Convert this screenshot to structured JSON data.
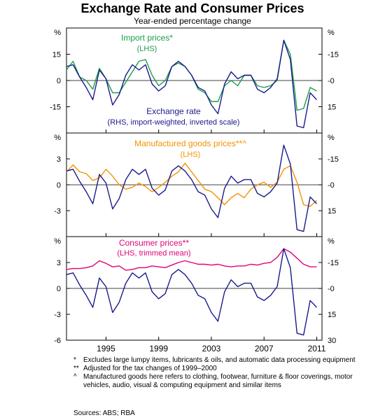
{
  "chart_data": {
    "type": "line",
    "title": "Exchange Rate and Consumer Prices",
    "subtitle": "Year-ended percentage change",
    "x_ticks": [
      "1995",
      "1999",
      "2003",
      "2007",
      "2011"
    ],
    "x_range": [
      1992.0,
      2011.4
    ],
    "panels": [
      {
        "unit_left": "%",
        "unit_right": "%",
        "left_ylim": [
          -30,
          30
        ],
        "left_ticks": [
          "15",
          "0",
          "-15"
        ],
        "left_tick_values": [
          15,
          0,
          -15
        ],
        "right_ylim": [
          30,
          -30
        ],
        "right_ticks": [
          "-15",
          "-0",
          "15"
        ],
        "right_tick_values": [
          -15,
          0,
          15
        ],
        "grid": false,
        "series": [
          {
            "name": "Import prices*",
            "label": "(LHS)",
            "axis": "left",
            "color": "#1a9e4a",
            "x": [
              1992.0,
              1992.5,
              1993.0,
              1993.5,
              1994.0,
              1994.5,
              1995.0,
              1995.5,
              1996.0,
              1996.5,
              1997.0,
              1997.5,
              1998.0,
              1998.5,
              1999.0,
              1999.5,
              2000.0,
              2000.5,
              2001.0,
              2001.5,
              2002.0,
              2002.5,
              2003.0,
              2003.5,
              2004.0,
              2004.5,
              2005.0,
              2005.5,
              2006.0,
              2006.5,
              2007.0,
              2007.5,
              2008.0,
              2008.5,
              2009.0,
              2009.5,
              2010.0,
              2010.5,
              2011.0
            ],
            "y": [
              6,
              11,
              2,
              0,
              -5,
              7,
              1,
              -7,
              -7,
              -1,
              5,
              11,
              12,
              3,
              -3,
              0,
              8,
              10,
              8,
              3,
              -5,
              -7,
              -12,
              -12,
              -3,
              0,
              -3,
              3,
              3,
              -3,
              -4,
              -3,
              0,
              23,
              15,
              -17,
              -16,
              -4,
              -6
            ]
          },
          {
            "name": "Exchange rate",
            "label": "(RHS, import-weighted, inverted scale)",
            "axis": "right",
            "color": "#1a1a8c",
            "x": [
              1992.0,
              1992.5,
              1993.0,
              1993.5,
              1994.0,
              1994.5,
              1995.0,
              1995.5,
              1996.0,
              1996.5,
              1997.0,
              1997.5,
              1998.0,
              1998.5,
              1999.0,
              1999.5,
              2000.0,
              2000.5,
              2001.0,
              2001.5,
              2002.0,
              2002.5,
              2003.0,
              2003.5,
              2004.0,
              2004.5,
              2005.0,
              2005.5,
              2006.0,
              2006.5,
              2007.0,
              2007.5,
              2008.0,
              2008.5,
              2009.0,
              2009.5,
              2010.0,
              2010.5,
              2011.0
            ],
            "y": [
              -8,
              -9,
              -2,
              4,
              11,
              -6,
              -1,
              14,
              8,
              -3,
              -9,
              -6,
              -9,
              2,
              6,
              3,
              -8,
              -11,
              -8,
              -3,
              4,
              6,
              14,
              19,
              2,
              -5,
              -1,
              -3,
              -3,
              5,
              7,
              4,
              -1,
              -23,
              -12,
              26,
              27,
              7,
              11
            ]
          }
        ]
      },
      {
        "unit_left": "%",
        "unit_right": "%",
        "left_ylim": [
          -6,
          6
        ],
        "left_ticks": [
          "3",
          "0",
          "-3"
        ],
        "left_tick_values": [
          3,
          0,
          -3
        ],
        "right_ylim": [
          30,
          -30
        ],
        "right_ticks": [
          "-15",
          "-0",
          "15"
        ],
        "right_tick_values": [
          -15,
          0,
          15
        ],
        "grid": false,
        "series": [
          {
            "name": "Manufactured goods prices**^",
            "label": "(LHS)",
            "axis": "left",
            "color": "#f39200",
            "x": [
              1992.0,
              1992.5,
              1993.0,
              1993.5,
              1994.0,
              1994.5,
              1995.0,
              1995.5,
              1996.0,
              1996.5,
              1997.0,
              1997.5,
              1998.0,
              1998.5,
              1999.0,
              1999.5,
              2000.0,
              2000.5,
              2001.0,
              2001.5,
              2002.0,
              2002.5,
              2003.0,
              2003.5,
              2004.0,
              2004.5,
              2005.0,
              2005.5,
              2006.0,
              2006.5,
              2007.0,
              2007.5,
              2008.0,
              2008.5,
              2009.0,
              2009.5,
              2010.0,
              2010.5,
              2011.0
            ],
            "y": [
              1.5,
              2.3,
              1.5,
              1.3,
              0.5,
              0.8,
              1.8,
              1.0,
              0.0,
              -0.5,
              -0.3,
              0.2,
              -0.2,
              -0.8,
              -0.3,
              0.3,
              1.0,
              1.5,
              2.5,
              1.5,
              0.5,
              -0.5,
              -0.8,
              -1.5,
              -2.3,
              -1.5,
              -1.0,
              -1.5,
              -0.5,
              0.0,
              0.3,
              -0.3,
              0.3,
              1.8,
              2.2,
              0.3,
              -2.3,
              -2.5,
              -1.8
            ]
          },
          {
            "name": "",
            "label": "",
            "axis": "right",
            "color": "#1a1a8c",
            "x": [
              1992.0,
              1992.5,
              1993.0,
              1993.5,
              1994.0,
              1994.5,
              1995.0,
              1995.5,
              1996.0,
              1996.5,
              1997.0,
              1997.5,
              1998.0,
              1998.5,
              1999.0,
              1999.5,
              2000.0,
              2000.5,
              2001.0,
              2001.5,
              2002.0,
              2002.5,
              2003.0,
              2003.5,
              2004.0,
              2004.5,
              2005.0,
              2005.5,
              2006.0,
              2006.5,
              2007.0,
              2007.5,
              2008.0,
              2008.5,
              2009.0,
              2009.5,
              2010.0,
              2010.5,
              2011.0
            ],
            "y": [
              -8,
              -9,
              -2,
              4,
              11,
              -6,
              -1,
              14,
              8,
              -3,
              -9,
              -6,
              -9,
              2,
              6,
              3,
              -8,
              -11,
              -8,
              -3,
              4,
              6,
              14,
              19,
              2,
              -5,
              -1,
              -3,
              -3,
              5,
              7,
              4,
              -1,
              -23,
              -12,
              26,
              27,
              7,
              11
            ]
          }
        ]
      },
      {
        "unit_left": "%",
        "unit_right": "%",
        "left_ylim": [
          -6,
          6
        ],
        "left_ticks": [
          "3",
          "0",
          "-3",
          "-6"
        ],
        "left_tick_values": [
          3,
          0,
          -3,
          -6
        ],
        "right_ylim": [
          30,
          -30
        ],
        "right_ticks": [
          "-15",
          "-0",
          "15",
          "30"
        ],
        "right_tick_values": [
          -15,
          0,
          15,
          30
        ],
        "grid": false,
        "series": [
          {
            "name": "Consumer prices**",
            "label": "(LHS, trimmed mean)",
            "axis": "left",
            "color": "#e0007a",
            "x": [
              1992.0,
              1992.5,
              1993.0,
              1993.5,
              1994.0,
              1994.5,
              1995.0,
              1995.5,
              1996.0,
              1996.5,
              1997.0,
              1997.5,
              1998.0,
              1998.5,
              1999.0,
              1999.5,
              2000.0,
              2000.5,
              2001.0,
              2001.5,
              2002.0,
              2002.5,
              2003.0,
              2003.5,
              2004.0,
              2004.5,
              2005.0,
              2005.5,
              2006.0,
              2006.5,
              2007.0,
              2007.5,
              2008.0,
              2008.5,
              2009.0,
              2009.5,
              2010.0,
              2010.5,
              2011.0
            ],
            "y": [
              2.2,
              2.3,
              2.3,
              2.4,
              2.6,
              3.2,
              2.9,
              2.5,
              2.6,
              2.1,
              2.2,
              2.4,
              2.4,
              2.6,
              2.5,
              2.4,
              2.7,
              3.0,
              3.2,
              3.0,
              2.8,
              2.8,
              2.7,
              2.8,
              2.6,
              2.5,
              2.6,
              2.6,
              2.8,
              2.7,
              2.9,
              3.0,
              3.6,
              4.6,
              4.2,
              3.5,
              2.8,
              2.5,
              2.5
            ]
          },
          {
            "name": "",
            "label": "",
            "axis": "right",
            "color": "#1a1a8c",
            "x": [
              1992.0,
              1992.5,
              1993.0,
              1993.5,
              1994.0,
              1994.5,
              1995.0,
              1995.5,
              1996.0,
              1996.5,
              1997.0,
              1997.5,
              1998.0,
              1998.5,
              1999.0,
              1999.5,
              2000.0,
              2000.5,
              2001.0,
              2001.5,
              2002.0,
              2002.5,
              2003.0,
              2003.5,
              2004.0,
              2004.5,
              2005.0,
              2005.5,
              2006.0,
              2006.5,
              2007.0,
              2007.5,
              2008.0,
              2008.5,
              2009.0,
              2009.5,
              2010.0,
              2010.5,
              2011.0
            ],
            "y": [
              -8,
              -9,
              -2,
              4,
              11,
              -6,
              -1,
              14,
              8,
              -3,
              -9,
              -6,
              -9,
              2,
              6,
              3,
              -8,
              -11,
              -8,
              -3,
              4,
              6,
              14,
              19,
              2,
              -5,
              -1,
              -3,
              -3,
              5,
              7,
              4,
              -1,
              -23,
              -12,
              26,
              27,
              7,
              11
            ]
          }
        ]
      }
    ]
  },
  "notes": [
    {
      "marker": "*",
      "text": "Excludes large lumpy items, lubricants & oils, and automatic data processing equipment"
    },
    {
      "marker": "**",
      "text": "Adjusted for the tax changes of 1999–2000"
    },
    {
      "marker": "^",
      "text": "Manufactured goods here refers to clothing, footwear, furniture & floor coverings, motor vehicles, audio, visual & computing equipment and similar items"
    }
  ],
  "sources": "Sources: ABS; RBA"
}
